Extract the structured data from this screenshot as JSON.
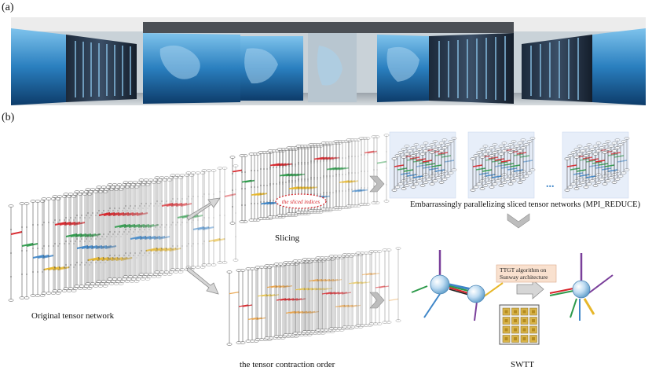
{
  "panels": {
    "a_label": "(a)",
    "b_label": "(b)"
  },
  "captions": {
    "original": "Original tensor network",
    "slicing": "Slicing",
    "sliced_indices": "the sliced indices",
    "parallel": "Embarrassingly parallelizing sliced tensor networks (MPI_REDUCE)",
    "contraction_order": "the tensor contraction order",
    "ttgt_line1": "TTGT algorithm on",
    "ttgt_line2": "Sunway architecture",
    "swtt": "SWTT",
    "dots": "..."
  },
  "colors": {
    "red": "#d8242a",
    "green": "#2d9a4a",
    "blue": "#3f86c8",
    "yellow": "#e7b72a",
    "orange_lines": "#e9a44c",
    "gray_arrow": "#9a9a9a",
    "sky": "#1f6fa8",
    "rack": "#2c3e55"
  }
}
